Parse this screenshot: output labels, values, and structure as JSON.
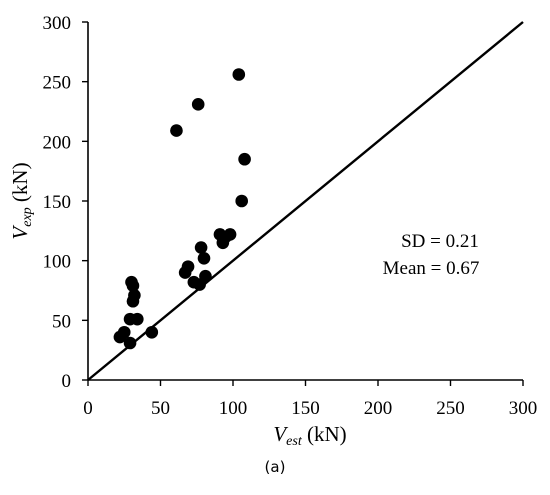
{
  "caption": "(a)",
  "chart_data": {
    "type": "scatter",
    "x_axis": {
      "label_main": "V",
      "label_sub": "est",
      "label_unit": " (kN)",
      "min": 0,
      "max": 300,
      "ticks": [
        0,
        50,
        100,
        150,
        200,
        250,
        300
      ]
    },
    "y_axis": {
      "label_main": "V",
      "label_sub": "exp",
      "label_unit": " (kN)",
      "min": 0,
      "max": 300,
      "ticks": [
        0,
        50,
        100,
        150,
        200,
        250,
        300
      ]
    },
    "grid": false,
    "reference_line": {
      "type": "y=x",
      "from": [
        0,
        0
      ],
      "to": [
        300,
        300
      ]
    },
    "annotations": [
      "SD = 0.21",
      "Mean = 0.67"
    ],
    "marker_color": "#000000",
    "series": [
      {
        "points": [
          [
            22,
            36
          ],
          [
            25,
            40
          ],
          [
            29,
            31
          ],
          [
            29,
            51
          ],
          [
            30,
            82
          ],
          [
            31,
            79
          ],
          [
            31,
            66
          ],
          [
            32,
            71
          ],
          [
            34,
            51
          ],
          [
            44,
            40
          ],
          [
            61,
            209
          ],
          [
            67,
            90
          ],
          [
            69,
            95
          ],
          [
            73,
            82
          ],
          [
            76,
            231
          ],
          [
            77,
            80
          ],
          [
            78,
            111
          ],
          [
            80,
            102
          ],
          [
            81,
            87
          ],
          [
            91,
            122
          ],
          [
            93,
            115
          ],
          [
            95,
            120
          ],
          [
            98,
            122
          ],
          [
            104,
            256
          ],
          [
            106,
            150
          ],
          [
            108,
            185
          ]
        ]
      }
    ]
  }
}
